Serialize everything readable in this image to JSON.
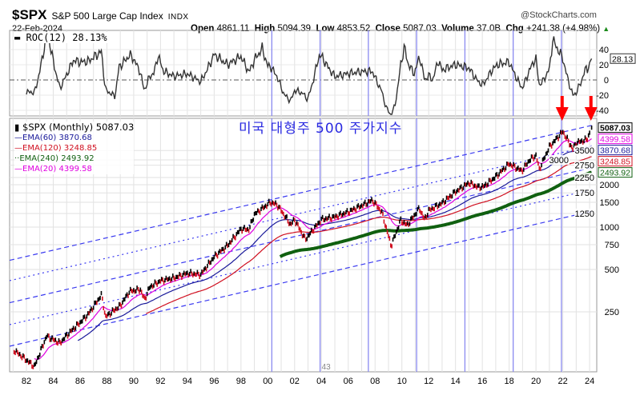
{
  "header": {
    "symbol": "$SPX",
    "name": "S&P 500 Large Cap Index",
    "exchange": "INDX",
    "date": "22-Feb-2024",
    "copyright": "@StockCharts.com",
    "open_label": "Open",
    "open": "4861.11",
    "high_label": "High",
    "high": "5094.39",
    "low_label": "Low",
    "low": "4853.52",
    "close_label": "Close",
    "close": "5087.03",
    "volume_label": "Volume",
    "volume": "37.0B",
    "chg_label": "Chg",
    "chg": "+241.38 (+4.98%)"
  },
  "annotation_title": "미국 대형주 500 주가지수",
  "roc_panel": {
    "label": "ROC(12) 28.13%",
    "last_value": "28.13",
    "yticks": [
      40,
      20,
      0,
      -20,
      -40
    ]
  },
  "legend": {
    "price": "$SPX (Monthly) 5087.03",
    "ema60": "EMA(60) 3870.68",
    "ema120": "EMA(120) 3248.85",
    "ema240": "EMA(240) 2493.92",
    "ema20": "EMA(20) 4399.58"
  },
  "right_labels": [
    {
      "text": "5087.03",
      "value": 5087.03,
      "color": "#000000"
    },
    {
      "text": "4399.58",
      "value": 4399.58,
      "color": "#e000e0"
    },
    {
      "text": "3870.68",
      "value": 3870.68,
      "color": "#1a1a9a"
    },
    {
      "text": "3248.85",
      "value": 3248.85,
      "color": "#d01020"
    },
    {
      "text": "2493.92",
      "value": 2493.92,
      "color": "#106010"
    }
  ],
  "cycle_marker_label": "43",
  "colors": {
    "price": "#000000",
    "ema20": "#e000e0",
    "ema60": "#1a1a9a",
    "ema120": "#d01020",
    "ema240": "#106010",
    "channel": "#3a3af0",
    "cycle": "#8a8af0",
    "arrow": "#ff0000",
    "title": "#2a2ae0"
  },
  "chart_data": {
    "type": "line",
    "title": "$SPX S&P 500 Large Cap Index (Monthly)",
    "yscale": "log",
    "xticks": [
      "82",
      "84",
      "86",
      "88",
      "90",
      "92",
      "94",
      "96",
      "98",
      "00",
      "02",
      "04",
      "06",
      "08",
      "10",
      "12",
      "14",
      "16",
      "18",
      "20",
      "22",
      "24"
    ],
    "yticks": [
      3500,
      3000,
      2750,
      2250,
      2000,
      1750,
      1500,
      1250,
      1000,
      750,
      500,
      250
    ],
    "xlim": [
      1980.75,
      2024.5
    ],
    "price_keypoints": [
      [
        1981.0,
        135
      ],
      [
        1981.6,
        122
      ],
      [
        1982.6,
        102
      ],
      [
        1983.5,
        168
      ],
      [
        1984.5,
        150
      ],
      [
        1985.0,
        170
      ],
      [
        1986.0,
        210
      ],
      [
        1986.6,
        240
      ],
      [
        1987.6,
        330
      ],
      [
        1987.9,
        230
      ],
      [
        1989.0,
        277
      ],
      [
        1989.7,
        350
      ],
      [
        1990.5,
        360
      ],
      [
        1990.8,
        305
      ],
      [
        1991.2,
        375
      ],
      [
        1992.0,
        415
      ],
      [
        1993.0,
        435
      ],
      [
        1994.0,
        470
      ],
      [
        1995.0,
        460
      ],
      [
        1996.0,
        615
      ],
      [
        1997.0,
        740
      ],
      [
        1998.0,
        970
      ],
      [
        1998.6,
        960
      ],
      [
        1999.0,
        1230
      ],
      [
        2000.2,
        1500
      ],
      [
        2000.7,
        1440
      ],
      [
        2001.7,
        1040
      ],
      [
        2002.0,
        1130
      ],
      [
        2002.8,
        815
      ],
      [
        2003.5,
        990
      ],
      [
        2004.0,
        1130
      ],
      [
        2005.0,
        1180
      ],
      [
        2006.0,
        1280
      ],
      [
        2007.0,
        1420
      ],
      [
        2007.8,
        1550
      ],
      [
        2008.5,
        1280
      ],
      [
        2009.2,
        735
      ],
      [
        2009.9,
        1115
      ],
      [
        2010.4,
        1030
      ],
      [
        2011.3,
        1360
      ],
      [
        2011.7,
        1130
      ],
      [
        2012.0,
        1310
      ],
      [
        2013.0,
        1480
      ],
      [
        2014.0,
        1780
      ],
      [
        2015.0,
        2060
      ],
      [
        2015.7,
        1920
      ],
      [
        2016.1,
        1940
      ],
      [
        2017.0,
        2280
      ],
      [
        2018.0,
        2820
      ],
      [
        2018.95,
        2500
      ],
      [
        2019.5,
        2980
      ],
      [
        2020.0,
        3230
      ],
      [
        2020.25,
        2580
      ],
      [
        2021.0,
        3710
      ],
      [
        2022.0,
        4770
      ],
      [
        2022.75,
        3580
      ],
      [
        2023.0,
        3960
      ],
      [
        2023.8,
        4190
      ],
      [
        2024.15,
        5087.03
      ]
    ],
    "series": [
      {
        "name": "$SPX (Monthly)",
        "last": 5087.03
      },
      {
        "name": "EMA(20)",
        "period": 20,
        "start_year": 1982.5,
        "last": 4399.58
      },
      {
        "name": "EMA(60)",
        "period": 60,
        "start_year": 1985.8,
        "last": 3870.68
      },
      {
        "name": "EMA(120)",
        "period": 120,
        "start_year": 1990.9,
        "last": 3248.85
      },
      {
        "name": "EMA(240)",
        "period": 240,
        "start_year": 2000.9,
        "last": 2493.92
      },
      {
        "name": "ROC(12)",
        "period": 12,
        "last": 28.13
      }
    ],
    "cycle_lines_years": [
      2000.3,
      2003.9,
      2007.5,
      2011.1,
      2014.7,
      2018.3,
      2021.9
    ],
    "arrows_years": [
      2021.95,
      2024.1
    ],
    "channel_levels_at_2024": [
      5300,
      3800,
      2650,
      1850,
      1300
    ],
    "roc_ylim": [
      -45,
      50
    ]
  }
}
